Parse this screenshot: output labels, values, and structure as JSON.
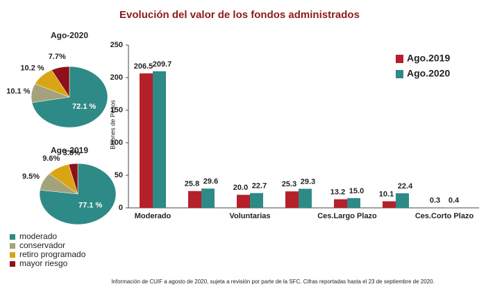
{
  "chart_data": [
    {
      "type": "bar",
      "title": "Evolución del valor de los fondos administrados",
      "y_label": "Billones de Pesos",
      "categories": [
        "Moderado",
        null,
        "Voluntarias",
        null,
        "Ces.Largo Plazo",
        null,
        "Ces.Corto Plazo"
      ],
      "series": [
        {
          "name": "Ago.2019",
          "color": "#b5202a",
          "values": [
            206.5,
            25.8,
            20.0,
            25.3,
            13.2,
            10.1,
            0.3
          ],
          "value_labels": [
            "206.5",
            "25.8",
            "20.0",
            "25.3",
            "13.2",
            "10.1",
            "0.3"
          ]
        },
        {
          "name": "Ago.2020",
          "color": "#2e8a86",
          "values": [
            209.7,
            29.6,
            22.7,
            29.3,
            15.0,
            22.4,
            0.4
          ],
          "value_labels": [
            "209.7",
            "29.6",
            "22.7",
            "29.3",
            "15.0",
            "22.4",
            "0.4"
          ]
        }
      ],
      "ylim": [
        0,
        250
      ],
      "yticks": [
        0,
        50,
        100,
        150,
        200,
        250
      ],
      "grid": false,
      "legend": "top-right"
    },
    {
      "type": "pie",
      "title": "Ago-2020",
      "categories": [
        "moderado",
        "conservador",
        "retiro programado",
        "mayor riesgo"
      ],
      "colors": [
        "#2e8a86",
        "#a3a27a",
        "#d9a514",
        "#8e1018"
      ],
      "values": [
        72.1,
        10.1,
        10.2,
        7.7
      ],
      "value_labels": [
        "72.1 %",
        "10.1 %",
        "10.2 %",
        "7.7%"
      ]
    },
    {
      "type": "pie",
      "title": "Ago-2019",
      "categories": [
        "moderado",
        "conservador",
        "retiro programado",
        "mayor riesgo"
      ],
      "colors": [
        "#2e8a86",
        "#a3a27a",
        "#d9a514",
        "#8e1018"
      ],
      "values": [
        77.1,
        9.5,
        9.6,
        3.8
      ],
      "value_labels": [
        "77.1 %",
        "9.5%",
        "9.6%",
        "3.8%"
      ]
    }
  ],
  "footnote": "Información de CUIF a agosto de 2020, sujeta a revisión por parte de la SFC. Cifras reportadas hasta el 23 de septiembre de 2020."
}
